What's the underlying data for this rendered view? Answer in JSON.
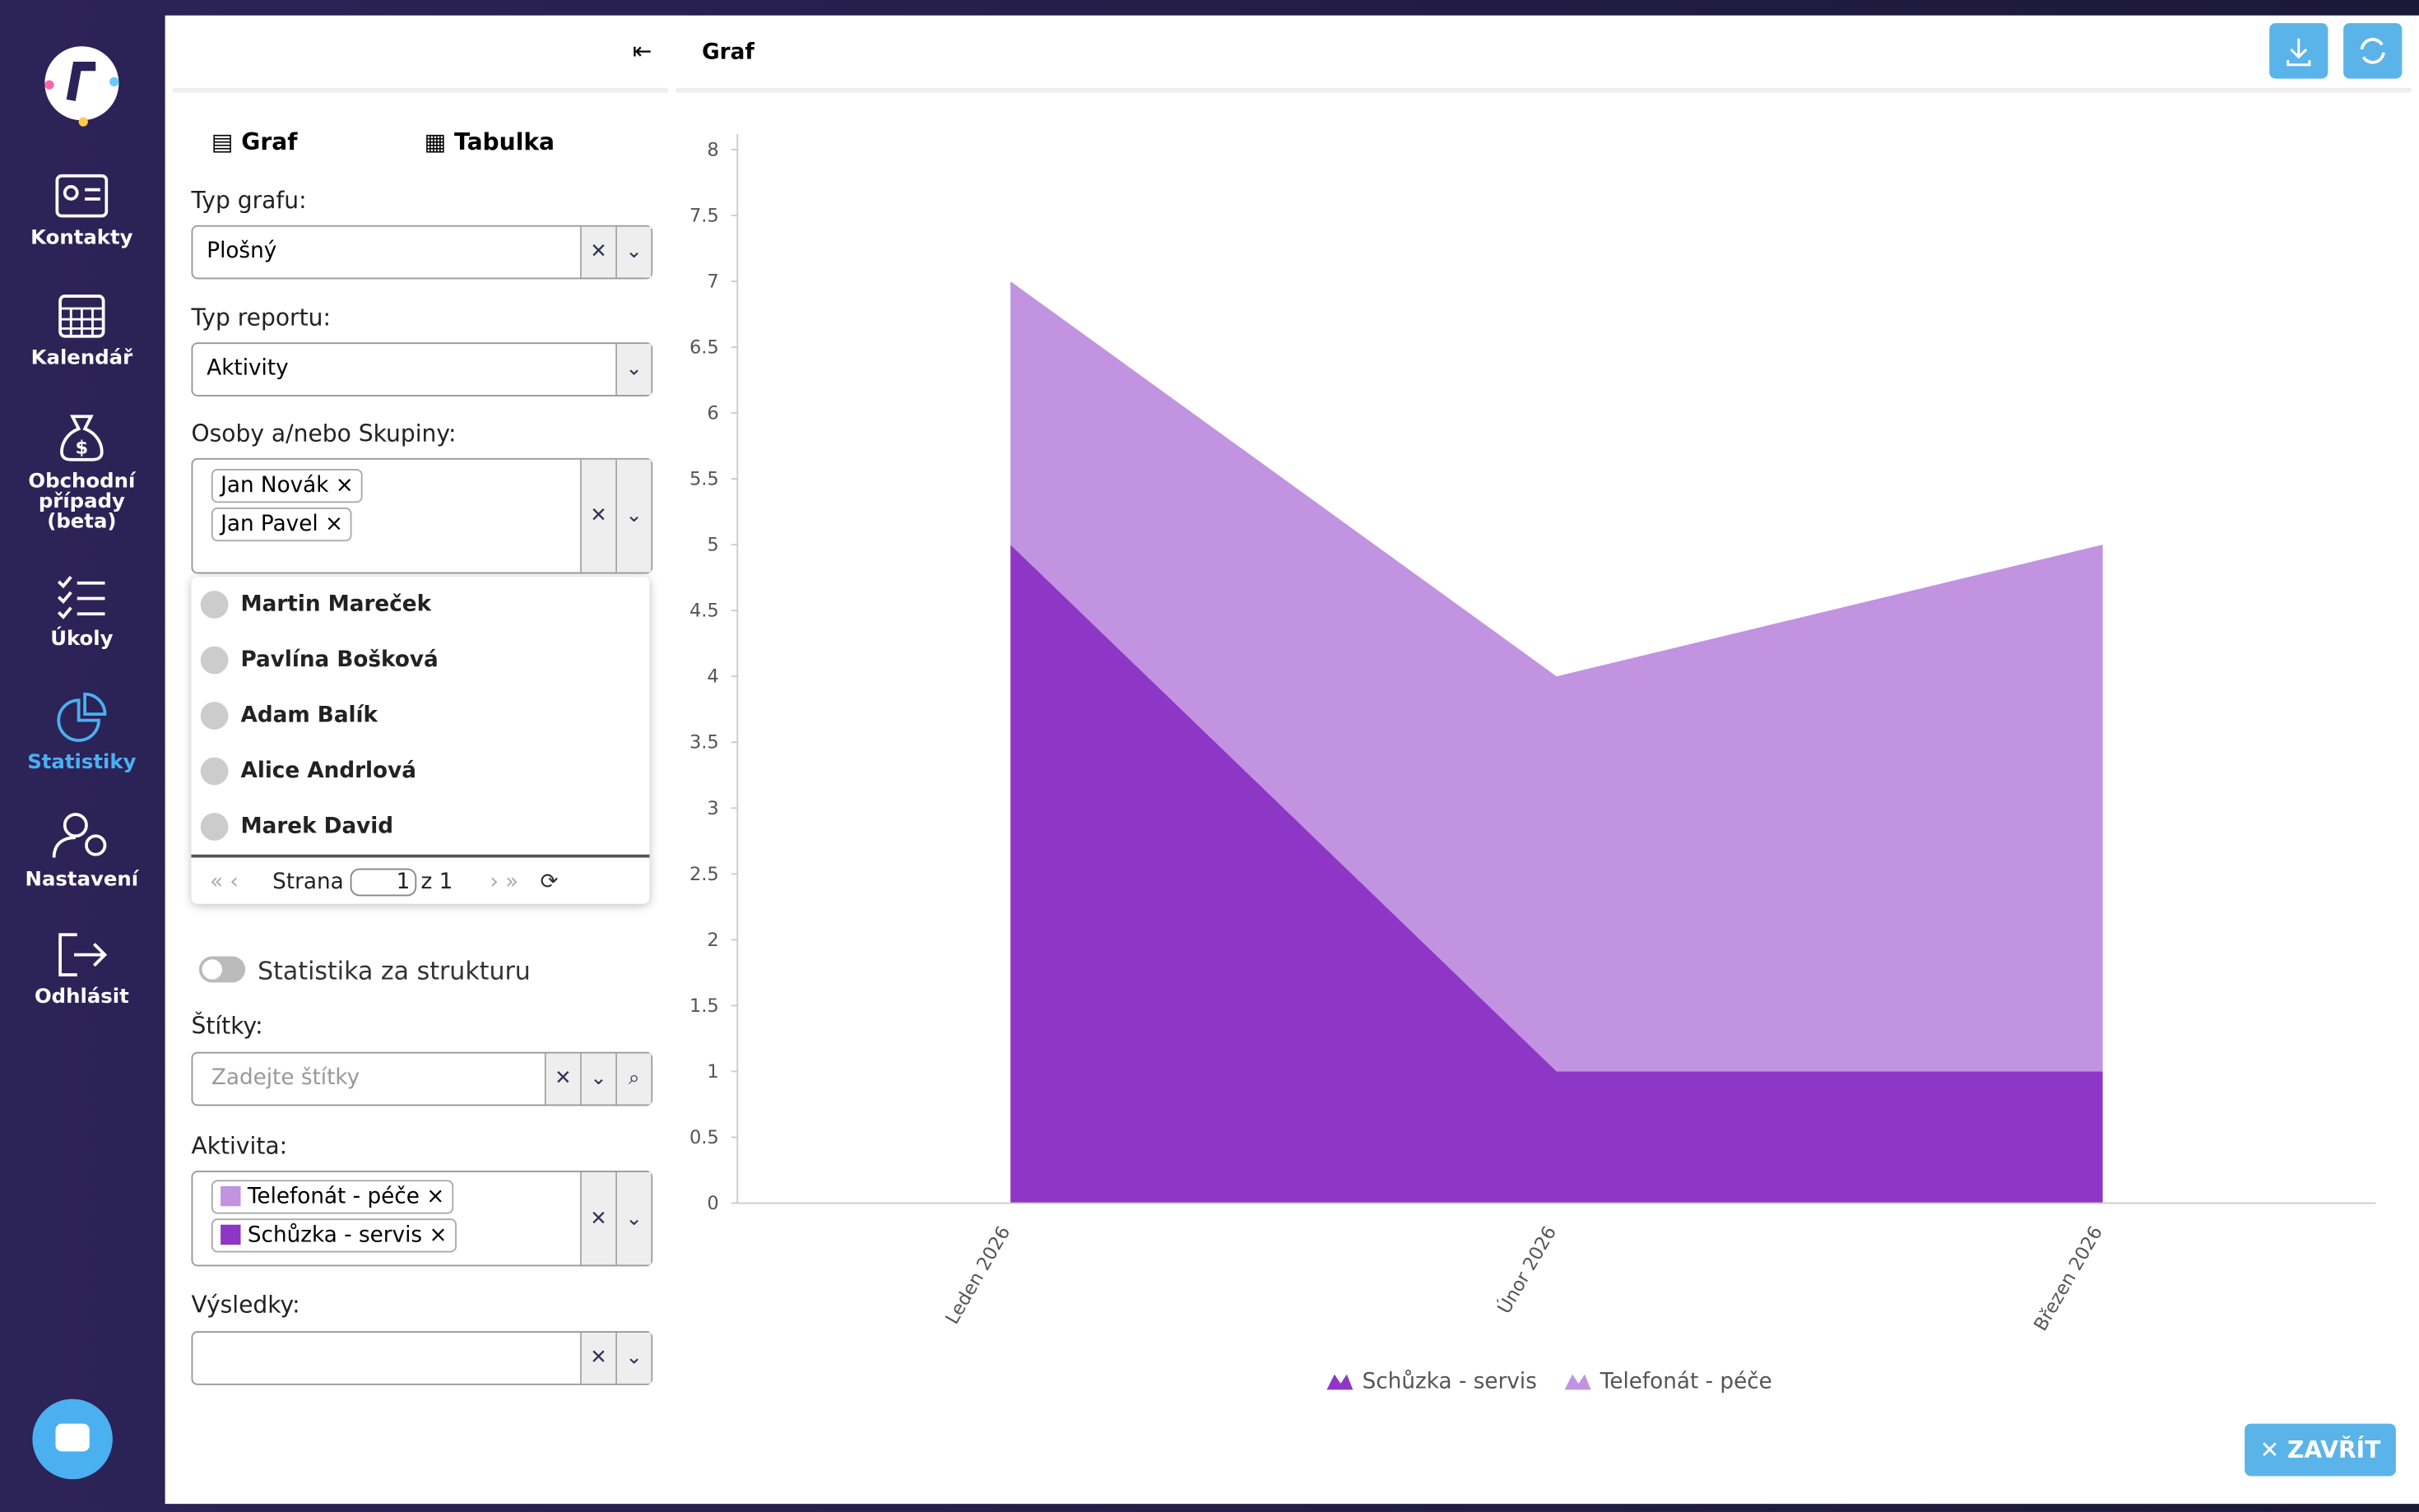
{
  "sidebar": {
    "items": [
      "Kontakty",
      "Kalendář",
      "Obchodní případy (beta)",
      "Úkoly",
      "Statistiky",
      "Nastavení",
      "Odhlásit"
    ]
  },
  "panel": {
    "tabs": [
      "Graf",
      "Tabulka"
    ],
    "chart_type": {
      "label": "Typ grafu:",
      "value": "Plošný"
    },
    "report_type": {
      "label": "Typ reportu:",
      "value": "Aktivity"
    },
    "people": {
      "label": "Osoby a/nebo Skupiny:",
      "selected": [
        "Jan Novák",
        "Jan Pavel"
      ],
      "options": [
        "Martin Mareček",
        "Pavlína Bošková",
        "Adam Balík",
        "Alice Andrlová",
        "Marek David"
      ],
      "pager": {
        "page_word": "Strana",
        "page": "1",
        "of": "z 1"
      }
    },
    "structure_toggle": "Statistika za strukturu",
    "tags": {
      "label": "Štítky:",
      "placeholder": "Zadejte štítky"
    },
    "activity": {
      "label": "Aktivita:",
      "chips": [
        "Telefonát - péče",
        "Schůzka - servis"
      ]
    },
    "results": {
      "label": "Výsledky:"
    }
  },
  "header": {
    "title": "Graf"
  },
  "close_button": "ZAVŘÍT",
  "chart_data": {
    "type": "area",
    "stacked": true,
    "categories": [
      "Leden 2026",
      "Únor 2026",
      "Březen 2026"
    ],
    "series": [
      {
        "name": "Schůzka - servis",
        "color": "#8e37c6",
        "values": [
          5,
          1,
          1
        ]
      },
      {
        "name": "Telefonát - péče",
        "color": "#c193e0",
        "values": [
          2,
          3,
          4
        ]
      }
    ],
    "ylim": [
      0,
      8
    ],
    "yticks": [
      0,
      0.5,
      1,
      1.5,
      2,
      2.5,
      3,
      3.5,
      4,
      4.5,
      5,
      5.5,
      6,
      6.5,
      7,
      7.5,
      8
    ],
    "legend": "bottom"
  }
}
